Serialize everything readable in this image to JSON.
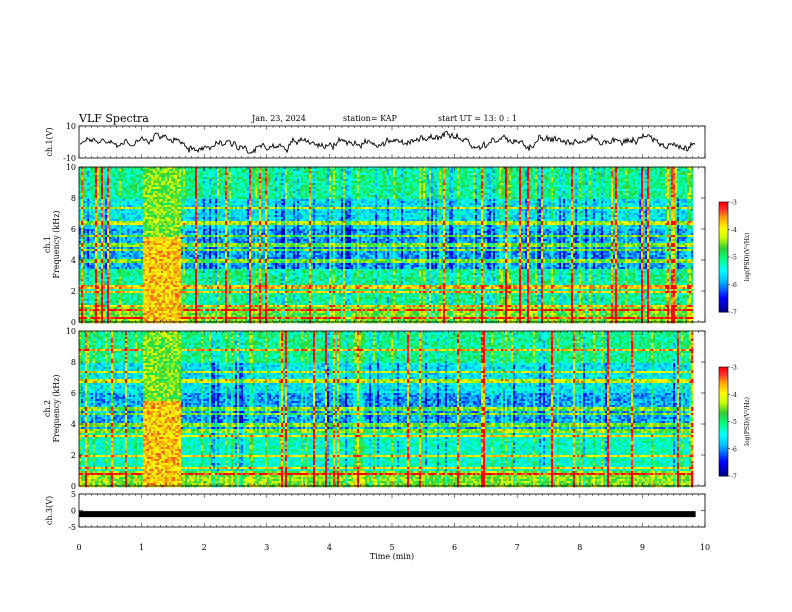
{
  "header": {
    "title": "VLF Spectra",
    "date": "Jan. 23, 2024",
    "station": "station= KAP",
    "start": "start UT =  13: 0 : 1"
  },
  "chart_data": [
    {
      "type": "line",
      "ylabel": "ch.1(V)",
      "ylim": [
        -10,
        10
      ],
      "yticks": [
        "10",
        "-10"
      ],
      "xlim": [
        0,
        10
      ],
      "series": [
        {
          "values_range": [
            -6,
            8
          ],
          "style": "noisy black trace"
        }
      ]
    },
    {
      "type": "heatmap",
      "ylabel": "ch.1 Frequency (kHz)",
      "ylim": [
        0,
        10
      ],
      "yticks": [
        "0",
        "2",
        "4",
        "6",
        "8",
        "10"
      ],
      "xlim": [
        0,
        10
      ],
      "data_extent_min": 9.8,
      "burst_interval_min": [
        1.0,
        1.6
      ],
      "strong_bands_khz": [
        0.3,
        0.8,
        1.1,
        2.0,
        2.3,
        4.0,
        4.7,
        5.0,
        5.6,
        6.4,
        7.4
      ],
      "colorbar": {
        "label": "log(PSD)(V²/Hz)",
        "range": [
          -7,
          -3
        ],
        "ticks": [
          "-3",
          "-4",
          "-5",
          "-6",
          "-7"
        ]
      }
    },
    {
      "type": "heatmap",
      "ylabel": "ch.2 Frequency (kHz)",
      "ylim": [
        0,
        10
      ],
      "yticks": [
        "0",
        "2",
        "4",
        "6",
        "8",
        "10"
      ],
      "xlim": [
        0,
        10
      ],
      "data_extent_min": 9.8,
      "burst_interval_min": [
        1.0,
        1.6
      ],
      "strong_bands_khz": [
        0.8,
        1.2,
        2.0,
        3.3,
        3.6,
        4.0,
        4.7,
        5.0,
        6.8,
        7.4,
        8.8
      ],
      "colorbar": {
        "label": "log(PSD)(V²/Hz)",
        "range": [
          -7,
          -3
        ],
        "ticks": [
          "-3",
          "-4",
          "-5",
          "-6",
          "-7"
        ]
      }
    },
    {
      "type": "line",
      "ylabel": "ch.3(V)",
      "ylim": [
        -5,
        5
      ],
      "yticks": [
        "5",
        "0",
        "-5"
      ],
      "xlim": [
        0,
        10
      ],
      "series": [
        {
          "values": [
            -1.1
          ],
          "style": "thick black constant line"
        }
      ]
    }
  ],
  "xaxis": {
    "label": "Time (min)",
    "ticks": [
      "0",
      "1",
      "2",
      "3",
      "4",
      "5",
      "6",
      "7",
      "8",
      "9",
      "10"
    ]
  },
  "colors": {
    "scale": [
      "#00008b",
      "#0000ff",
      "#00bfff",
      "#00ffff",
      "#00ff7f",
      "#33cc33",
      "#ccff00",
      "#ffff00",
      "#ffa500",
      "#ff3030",
      "#ff0000"
    ]
  }
}
